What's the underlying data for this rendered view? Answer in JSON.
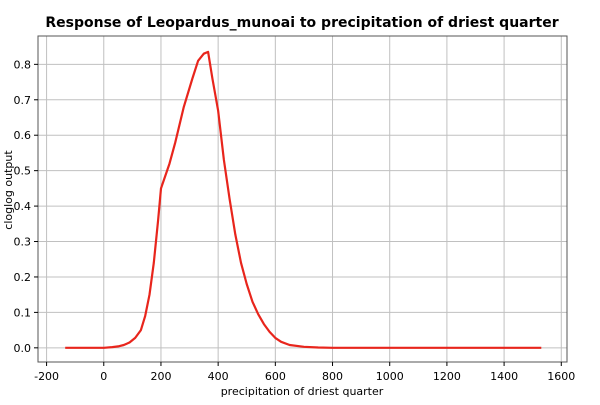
{
  "chart_data": {
    "type": "line",
    "title": "Response of Leopardus_munoai to precipitation of driest quarter",
    "xlabel": "precipitation of driest quarter",
    "ylabel": "cloglog output",
    "xlim": [
      -230,
      1620
    ],
    "ylim": [
      -0.04,
      0.88
    ],
    "x_ticks": [
      -200,
      0,
      200,
      400,
      600,
      800,
      1000,
      1200,
      1400,
      1600
    ],
    "y_ticks": [
      0.0,
      0.1,
      0.2,
      0.3,
      0.4,
      0.5,
      0.6,
      0.7,
      0.8
    ],
    "x_tick_labels": [
      "-200",
      "0",
      "200",
      "400",
      "600",
      "800",
      "1000",
      "1200",
      "1400",
      "1600"
    ],
    "y_tick_labels": [
      "0.0",
      "0.1",
      "0.2",
      "0.3",
      "0.4",
      "0.5",
      "0.6",
      "0.7",
      "0.8"
    ],
    "grid": true,
    "series": [
      {
        "color": "#e8251c",
        "x": [
          -135,
          0,
          30,
          50,
          70,
          90,
          110,
          130,
          145,
          160,
          175,
          190,
          200,
          230,
          250,
          280,
          310,
          330,
          350,
          365,
          380,
          400,
          420,
          440,
          460,
          480,
          500,
          520,
          540,
          560,
          580,
          600,
          620,
          650,
          700,
          750,
          800,
          1000,
          1200,
          1400,
          1530
        ],
        "y": [
          0.0,
          0.0,
          0.002,
          0.004,
          0.008,
          0.015,
          0.028,
          0.05,
          0.09,
          0.15,
          0.24,
          0.36,
          0.45,
          0.52,
          0.58,
          0.68,
          0.76,
          0.81,
          0.83,
          0.835,
          0.76,
          0.67,
          0.53,
          0.42,
          0.32,
          0.24,
          0.18,
          0.13,
          0.095,
          0.067,
          0.045,
          0.028,
          0.017,
          0.008,
          0.003,
          0.001,
          0.0,
          0.0,
          0.0,
          0.0,
          0.0
        ]
      }
    ]
  }
}
